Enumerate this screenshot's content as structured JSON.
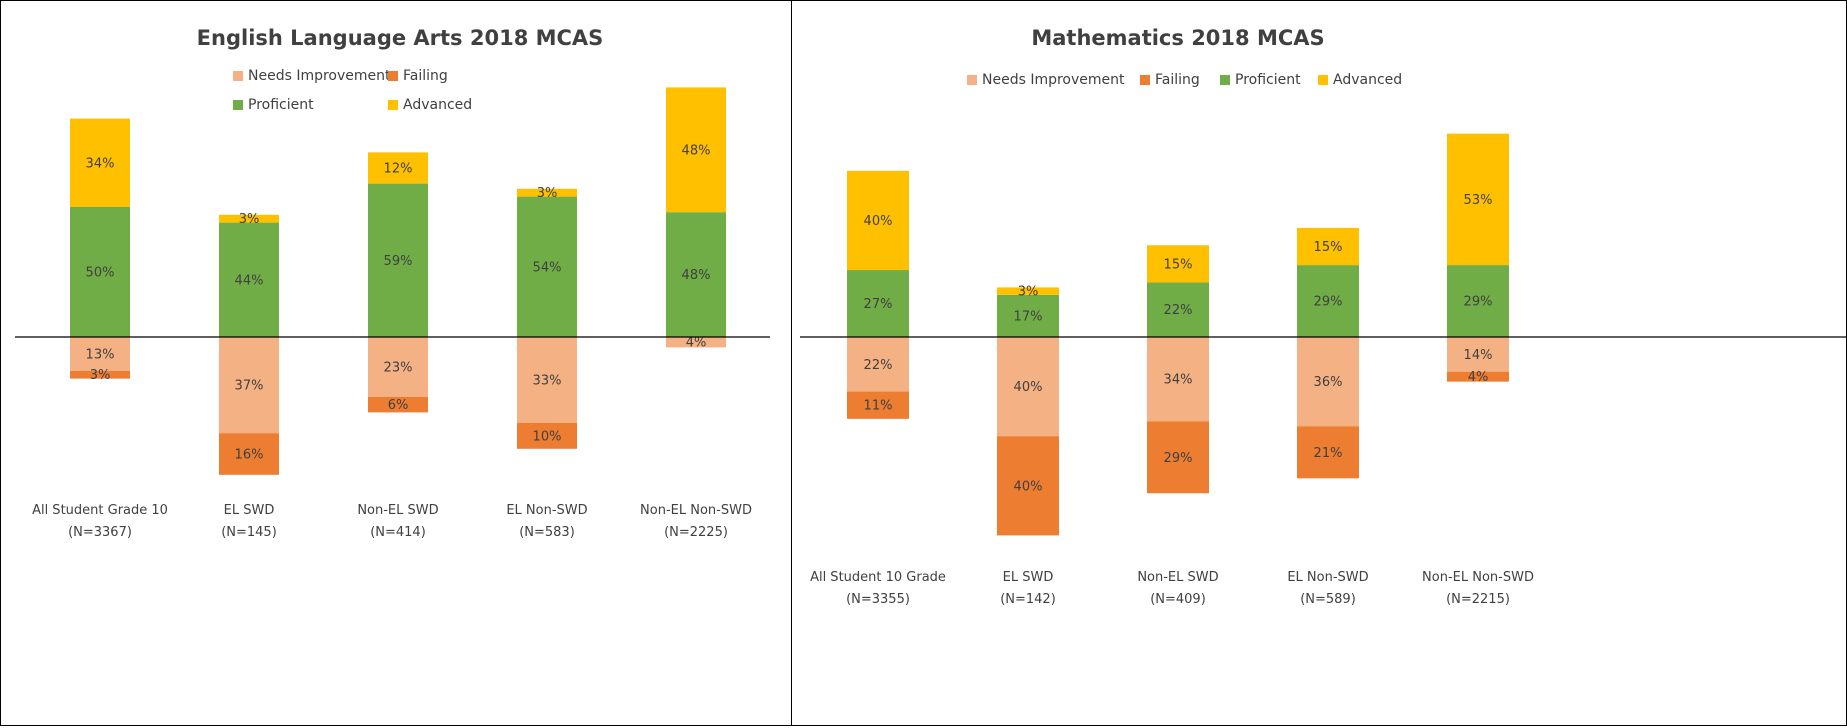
{
  "chart_data": [
    {
      "type": "diverging_bar",
      "title": "English Language Arts 2018 MCAS",
      "categories": [
        "All Student Grade 10\n(N=3367)",
        "EL SWD\n(N=145)",
        "Non-EL SWD\n(N=414)",
        "EL Non-SWD\n(N=583)",
        "Non-EL Non-SWD\n(N=2225)"
      ],
      "series": [
        {
          "name": "Needs Improvement",
          "color": "#f4b183",
          "side": "below",
          "values": [
            13,
            37,
            23,
            33,
            4
          ],
          "value_labels": [
            "13%",
            "37%",
            "23%",
            "33%",
            "4%"
          ]
        },
        {
          "name": "Failing",
          "color": "#ed7d31",
          "side": "below",
          "values": [
            3,
            16,
            6,
            10,
            null
          ],
          "value_labels": [
            "3%",
            "16%",
            "6%",
            "10%",
            null
          ]
        },
        {
          "name": "Proficient",
          "color": "#70ad47",
          "side": "above",
          "values": [
            50,
            44,
            59,
            54,
            48
          ],
          "value_labels": [
            "50%",
            "44%",
            "59%",
            "54%",
            "48%"
          ]
        },
        {
          "name": "Advanced",
          "color": "#ffc000",
          "side": "above",
          "values": [
            34,
            3,
            12,
            3,
            48
          ],
          "value_labels": [
            "34%",
            "3%",
            "12%",
            "3%",
            "48%"
          ]
        }
      ]
    },
    {
      "type": "diverging_bar",
      "title": "Mathematics 2018 MCAS",
      "categories": [
        "All Student 10 Grade\n(N=3355)",
        "EL SWD\n(N=142)",
        "Non-EL SWD\n(N=409)",
        "EL Non-SWD\n(N=589)",
        "Non-EL Non-SWD\n(N=2215)"
      ],
      "series": [
        {
          "name": "Needs Improvement",
          "color": "#f4b183",
          "side": "below",
          "values": [
            22,
            40,
            34,
            36,
            14
          ],
          "value_labels": [
            "22%",
            "40%",
            "34%",
            "36%",
            "14%"
          ]
        },
        {
          "name": "Failing",
          "color": "#ed7d31",
          "side": "below",
          "values": [
            11,
            40,
            29,
            21,
            4
          ],
          "value_labels": [
            "11%",
            "40%",
            "29%",
            "21%",
            "4%"
          ]
        },
        {
          "name": "Proficient",
          "color": "#70ad47",
          "side": "above",
          "values": [
            27,
            17,
            22,
            29,
            29
          ],
          "value_labels": [
            "27%",
            "17%",
            "22%",
            "29%",
            "29%"
          ]
        },
        {
          "name": "Advanced",
          "color": "#ffc000",
          "side": "above",
          "values": [
            40,
            3,
            15,
            15,
            53
          ],
          "value_labels": [
            "40%",
            "3%",
            "15%",
            "15%",
            "53%"
          ]
        }
      ]
    }
  ]
}
